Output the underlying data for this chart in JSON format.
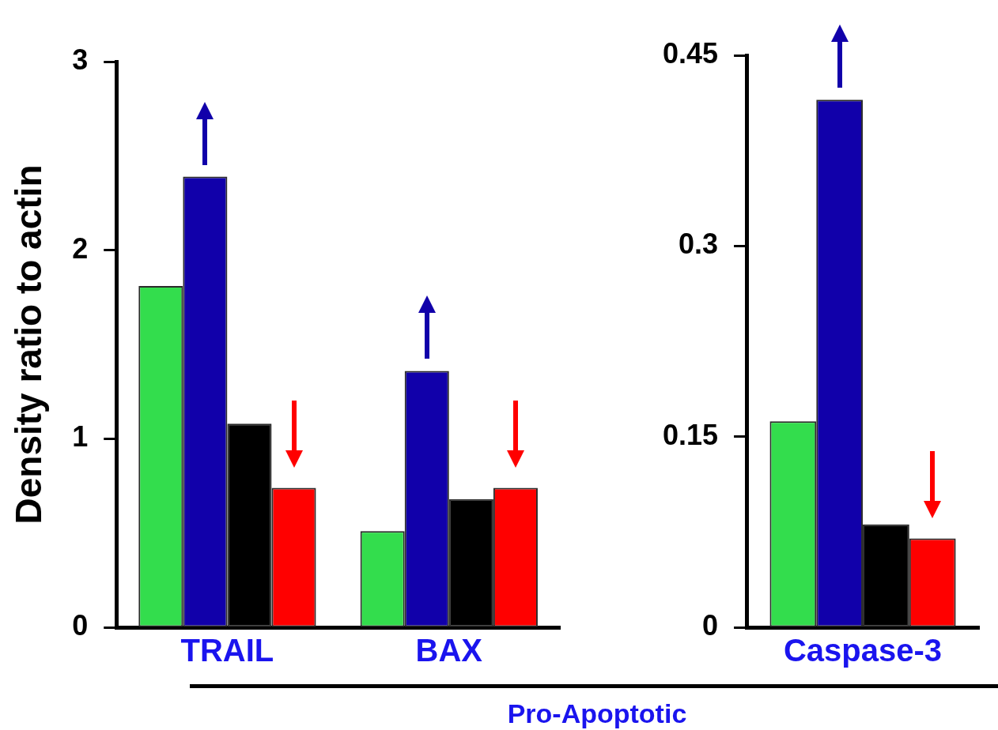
{
  "chart_data": [
    {
      "type": "bar",
      "ylabel": "Density ratio to actin",
      "categories": [
        "TRAIL",
        "BAX"
      ],
      "ylim": [
        0,
        3
      ],
      "yticks": [
        0,
        1,
        2,
        3
      ],
      "grid": false,
      "legend": false,
      "annotations": [
        "Pro-Apoptotic"
      ],
      "series": [
        {
          "color": "#33dd4d",
          "values": [
            1.81,
            0.51
          ]
        },
        {
          "color": "#1100aa",
          "values": [
            2.39,
            1.36
          ]
        },
        {
          "color": "#000000",
          "values": [
            1.08,
            0.68
          ]
        },
        {
          "color": "#ff0000",
          "values": [
            0.74,
            0.74
          ]
        }
      ]
    },
    {
      "type": "bar",
      "categories": [
        "Caspase-3"
      ],
      "ylim": [
        0,
        0.45
      ],
      "yticks": [
        0,
        0.15,
        0.3,
        0.45
      ],
      "grid": false,
      "legend": false,
      "series": [
        {
          "color": "#33dd4d",
          "values": [
            0.162
          ]
        },
        {
          "color": "#1100aa",
          "values": [
            0.415
          ]
        },
        {
          "color": "#000000",
          "values": [
            0.081
          ]
        },
        {
          "color": "#ff0000",
          "values": [
            0.07
          ]
        }
      ]
    }
  ]
}
